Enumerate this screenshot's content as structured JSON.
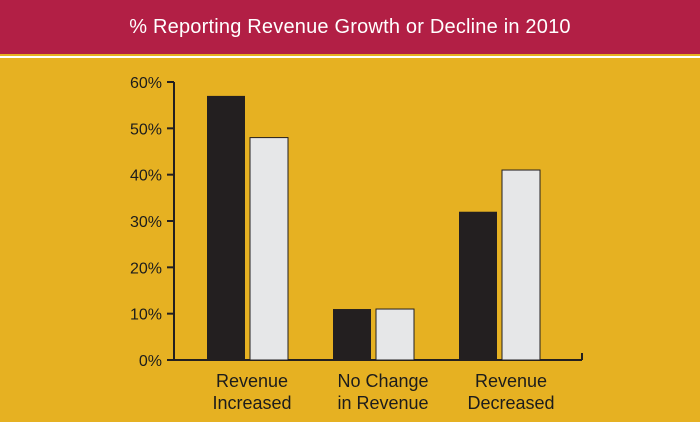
{
  "header": {
    "title": "% Reporting Revenue Growth or Decline in 2010"
  },
  "colors": {
    "header_bg": "#b21f45",
    "chart_bg": "#e6b122",
    "series_dark": "#231f20",
    "series_light": "#e6e7e8",
    "axis": "#231f20"
  },
  "chart_data": {
    "type": "bar",
    "title": "% Reporting Revenue Growth or Decline in 2010",
    "xlabel": "",
    "ylabel": "",
    "categories": [
      [
        "Revenue",
        "Increased"
      ],
      [
        "No Change",
        "in Revenue"
      ],
      [
        "Revenue",
        "Decreased"
      ]
    ],
    "series": [
      {
        "values": [
          57,
          11,
          32
        ],
        "color": "#231f20"
      },
      {
        "values": [
          48,
          11,
          41
        ],
        "color": "#e6e7e8"
      }
    ],
    "ylim": [
      0,
      60
    ],
    "yticks": [
      0,
      10,
      20,
      30,
      40,
      50,
      60
    ],
    "ytick_labels": [
      "0%",
      "10%",
      "20%",
      "30%",
      "40%",
      "50%",
      "60%"
    ],
    "grid": false,
    "legend": "none"
  }
}
